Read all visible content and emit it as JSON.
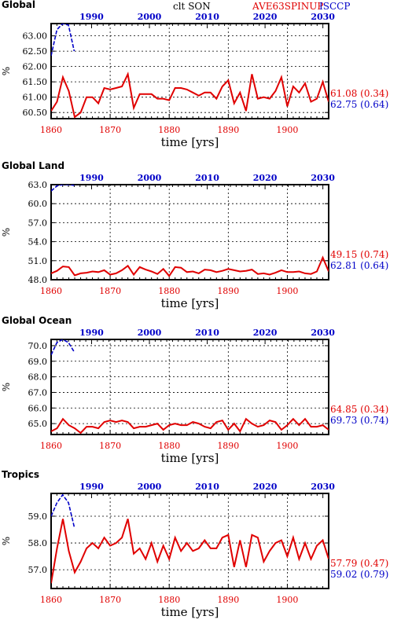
{
  "header": {
    "variable": "clt SON",
    "model": "AVE63SPINUP",
    "obs": "ISCCP"
  },
  "colors": {
    "model": "#e00000",
    "obs": "#0000c8",
    "axis": "#000000",
    "grid": "#000000"
  },
  "chart_data": [
    {
      "type": "line",
      "title": "Global",
      "xlabel": "time [yrs]",
      "ylabel": "%",
      "xlim_bottom": [
        1860,
        1907
      ],
      "xticks_bottom": [
        1860,
        1870,
        1880,
        1890,
        1900
      ],
      "xlim_top": [
        1983,
        2031
      ],
      "xticks_top": [
        1990,
        2000,
        2010,
        2020,
        2030
      ],
      "ylim": [
        60.3,
        63.4
      ],
      "yticks": [
        60.5,
        61.0,
        61.5,
        62.0,
        62.5,
        63.0
      ],
      "ytick_labels": [
        "60.50",
        "61.00",
        "61.50",
        "62.00",
        "62.50",
        "63.00"
      ],
      "grid": true,
      "series": [
        {
          "name": "AVE63SPINUP",
          "axis": "bottom",
          "style": "solid",
          "x": [
            1860,
            1861,
            1862,
            1863,
            1864,
            1865,
            1866,
            1867,
            1868,
            1869,
            1870,
            1871,
            1872,
            1873,
            1874,
            1875,
            1876,
            1877,
            1878,
            1879,
            1880,
            1881,
            1882,
            1883,
            1884,
            1885,
            1886,
            1887,
            1888,
            1889,
            1890,
            1891,
            1892,
            1893,
            1894,
            1895,
            1896,
            1897,
            1898,
            1899,
            1900,
            1901,
            1902,
            1903,
            1904,
            1905,
            1906,
            1907
          ],
          "values": [
            60.55,
            60.85,
            61.65,
            61.2,
            60.35,
            60.5,
            61.0,
            61.0,
            60.8,
            61.3,
            61.25,
            61.3,
            61.35,
            61.75,
            60.65,
            61.1,
            61.1,
            61.1,
            60.95,
            60.95,
            60.9,
            61.3,
            61.3,
            61.25,
            61.15,
            61.05,
            61.15,
            61.15,
            60.95,
            61.35,
            61.55,
            60.8,
            61.15,
            60.55,
            61.75,
            60.95,
            61.0,
            60.95,
            61.2,
            61.65,
            60.7,
            61.35,
            61.15,
            61.45,
            60.85,
            60.95,
            61.5,
            60.85
          ]
        },
        {
          "name": "ISCCP",
          "axis": "top",
          "style": "dashed",
          "x": [
            1983,
            1984,
            1985,
            1986,
            1987
          ],
          "values": [
            62.35,
            63.2,
            63.4,
            63.35,
            62.5
          ]
        }
      ],
      "annotations": {
        "model_value": "61.08 (0.34)",
        "obs_value": "62.75 (0.64)"
      }
    },
    {
      "type": "line",
      "title": "Global Land",
      "xlabel": "time [yrs]",
      "ylabel": "%",
      "xlim_bottom": [
        1860,
        1907
      ],
      "xticks_bottom": [
        1860,
        1870,
        1880,
        1890,
        1900
      ],
      "xlim_top": [
        1983,
        2031
      ],
      "xticks_top": [
        1990,
        2000,
        2010,
        2020,
        2030
      ],
      "ylim": [
        48.0,
        63.0
      ],
      "yticks": [
        48.0,
        51.0,
        54.0,
        57.0,
        60.0,
        63.0
      ],
      "ytick_labels": [
        "48.0",
        "51.0",
        "54.0",
        "57.0",
        "60.0",
        "63.0"
      ],
      "grid": true,
      "series": [
        {
          "name": "AVE63SPINUP",
          "axis": "bottom",
          "style": "solid",
          "x": [
            1860,
            1861,
            1862,
            1863,
            1864,
            1865,
            1866,
            1867,
            1868,
            1869,
            1870,
            1871,
            1872,
            1873,
            1874,
            1875,
            1876,
            1877,
            1878,
            1879,
            1880,
            1881,
            1882,
            1883,
            1884,
            1885,
            1886,
            1887,
            1888,
            1889,
            1890,
            1891,
            1892,
            1893,
            1894,
            1895,
            1896,
            1897,
            1898,
            1899,
            1900,
            1901,
            1902,
            1903,
            1904,
            1905,
            1906,
            1907
          ],
          "values": [
            49.0,
            49.4,
            50.1,
            50.0,
            48.7,
            49.0,
            49.1,
            49.3,
            49.2,
            49.5,
            48.8,
            49.0,
            49.5,
            50.2,
            48.8,
            50.0,
            49.6,
            49.3,
            48.9,
            49.7,
            48.6,
            50.0,
            49.9,
            49.2,
            49.3,
            49.0,
            49.6,
            49.5,
            49.2,
            49.4,
            49.7,
            49.5,
            49.3,
            49.4,
            49.6,
            48.9,
            49.0,
            48.8,
            49.1,
            49.5,
            49.2,
            49.2,
            49.3,
            49.0,
            48.9,
            49.3,
            51.5,
            49.3
          ]
        },
        {
          "name": "ISCCP",
          "axis": "top",
          "style": "dashed",
          "x": [
            1983,
            1984,
            1985,
            1986,
            1987
          ],
          "values": [
            62.0,
            62.8,
            63.0,
            63.0,
            62.9
          ]
        }
      ],
      "annotations": {
        "model_value": "49.15 (0.74)",
        "obs_value": "62.81 (0.64)"
      }
    },
    {
      "type": "line",
      "title": "Global Ocean",
      "xlabel": "time [yrs]",
      "ylabel": "%",
      "xlim_bottom": [
        1860,
        1907
      ],
      "xticks_bottom": [
        1860,
        1870,
        1880,
        1890,
        1900
      ],
      "xlim_top": [
        1983,
        2031
      ],
      "xticks_top": [
        1990,
        2000,
        2010,
        2020,
        2030
      ],
      "ylim": [
        64.3,
        70.4
      ],
      "yticks": [
        65.0,
        66.0,
        67.0,
        68.0,
        69.0,
        70.0
      ],
      "ytick_labels": [
        "65.0",
        "66.0",
        "67.0",
        "68.0",
        "69.0",
        "70.0"
      ],
      "grid": true,
      "series": [
        {
          "name": "AVE63SPINUP",
          "axis": "bottom",
          "style": "solid",
          "x": [
            1860,
            1861,
            1862,
            1863,
            1864,
            1865,
            1866,
            1867,
            1868,
            1869,
            1870,
            1871,
            1872,
            1873,
            1874,
            1875,
            1876,
            1877,
            1878,
            1879,
            1880,
            1881,
            1882,
            1883,
            1884,
            1885,
            1886,
            1887,
            1888,
            1889,
            1890,
            1891,
            1892,
            1893,
            1894,
            1895,
            1896,
            1897,
            1898,
            1899,
            1900,
            1901,
            1902,
            1903,
            1904,
            1905,
            1906,
            1907
          ],
          "values": [
            64.5,
            64.7,
            65.3,
            64.9,
            64.7,
            64.4,
            64.8,
            64.8,
            64.7,
            65.1,
            65.2,
            65.1,
            65.2,
            65.1,
            64.7,
            64.8,
            64.8,
            64.9,
            65.0,
            64.6,
            64.9,
            65.0,
            64.9,
            64.9,
            65.1,
            65.0,
            64.8,
            64.7,
            65.1,
            65.2,
            64.6,
            65.0,
            64.5,
            65.3,
            65.0,
            64.8,
            64.9,
            65.2,
            65.1,
            64.6,
            64.9,
            65.3,
            64.9,
            65.3,
            64.8,
            64.8,
            64.9,
            64.6
          ]
        },
        {
          "name": "ISCCP",
          "axis": "top",
          "style": "dashed",
          "x": [
            1983,
            1984,
            1985,
            1986,
            1987
          ],
          "values": [
            69.4,
            70.2,
            70.4,
            70.2,
            69.6
          ]
        }
      ],
      "annotations": {
        "model_value": "64.85 (0.34)",
        "obs_value": "69.73 (0.74)"
      }
    },
    {
      "type": "line",
      "title": "Tropics",
      "xlabel": "time [yrs]",
      "ylabel": "%",
      "xlim_bottom": [
        1860,
        1907
      ],
      "xticks_bottom": [
        1860,
        1870,
        1880,
        1890,
        1900
      ],
      "xlim_top": [
        1983,
        2031
      ],
      "xticks_top": [
        1990,
        2000,
        2010,
        2020,
        2030
      ],
      "ylim": [
        56.3,
        59.85
      ],
      "yticks": [
        57.0,
        58.0,
        59.0
      ],
      "ytick_labels": [
        "57.0",
        "58.0",
        "59.0"
      ],
      "grid": true,
      "series": [
        {
          "name": "AVE63SPINUP",
          "axis": "bottom",
          "style": "solid",
          "x": [
            1860,
            1861,
            1862,
            1863,
            1864,
            1865,
            1866,
            1867,
            1868,
            1869,
            1870,
            1871,
            1872,
            1873,
            1874,
            1875,
            1876,
            1877,
            1878,
            1879,
            1880,
            1881,
            1882,
            1883,
            1884,
            1885,
            1886,
            1887,
            1888,
            1889,
            1890,
            1891,
            1892,
            1893,
            1894,
            1895,
            1896,
            1897,
            1898,
            1899,
            1900,
            1901,
            1902,
            1903,
            1904,
            1905,
            1906,
            1907
          ],
          "values": [
            56.5,
            57.8,
            58.9,
            57.7,
            56.9,
            57.3,
            57.8,
            58.0,
            57.8,
            58.2,
            57.9,
            58.0,
            58.2,
            58.9,
            57.6,
            57.8,
            57.4,
            58.0,
            57.3,
            57.9,
            57.4,
            58.2,
            57.7,
            58.0,
            57.7,
            57.8,
            58.1,
            57.8,
            57.8,
            58.2,
            58.3,
            57.1,
            58.1,
            57.1,
            58.3,
            58.2,
            57.3,
            57.7,
            58.0,
            58.1,
            57.5,
            58.2,
            57.4,
            58.0,
            57.4,
            57.9,
            58.1,
            57.4
          ]
        },
        {
          "name": "ISCCP",
          "axis": "top",
          "style": "dashed",
          "x": [
            1983,
            1984,
            1985,
            1986,
            1987
          ],
          "values": [
            59.0,
            59.5,
            59.8,
            59.5,
            58.6
          ]
        }
      ],
      "annotations": {
        "model_value": "57.79 (0.47)",
        "obs_value": "59.02 (0.79)"
      }
    }
  ]
}
